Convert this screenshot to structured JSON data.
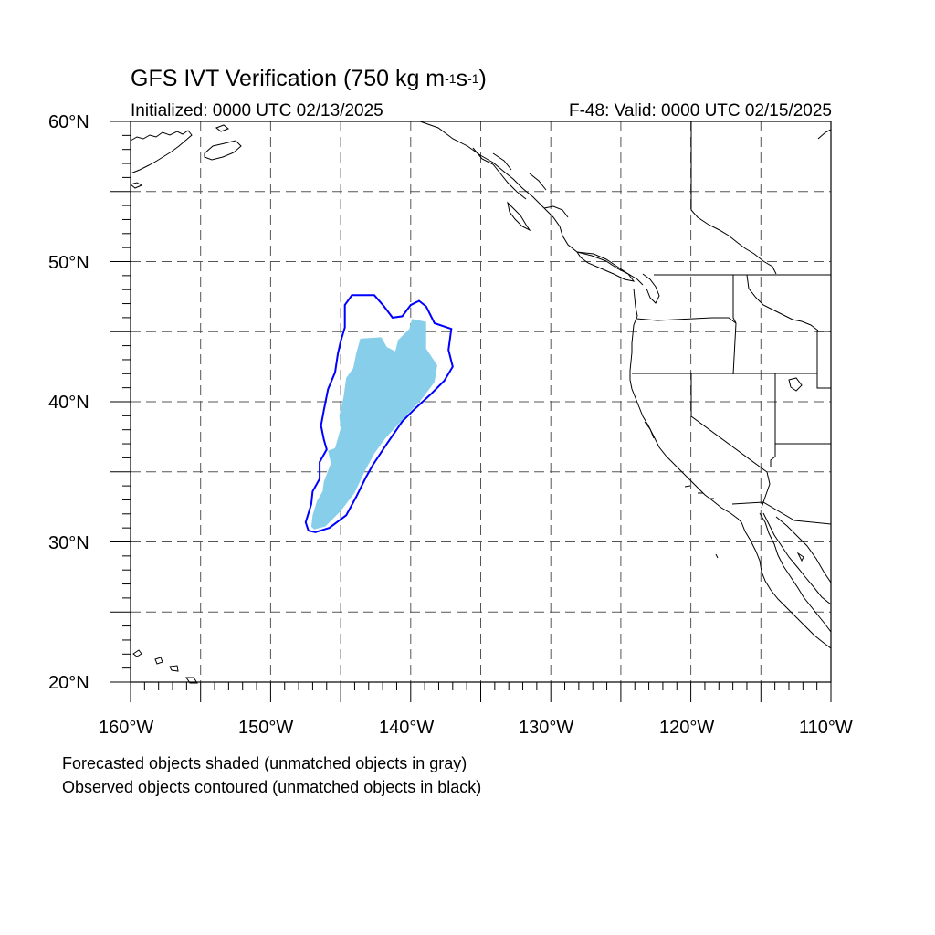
{
  "title": {
    "main": "GFS IVT Verification (750 kg m",
    "sup1": "-1",
    "mid": "s",
    "sup2": "-1",
    "end": ")"
  },
  "initialized_label": "Initialized: 0000 UTC 02/13/2025",
  "valid_label": "F-48: Valid: 0000 UTC 02/15/2025",
  "lat_ticks": [
    {
      "value": 60,
      "label": "60°N"
    },
    {
      "value": 50,
      "label": "50°N"
    },
    {
      "value": 40,
      "label": "40°N"
    },
    {
      "value": 30,
      "label": "30°N"
    },
    {
      "value": 20,
      "label": "20°N"
    }
  ],
  "lon_ticks": [
    {
      "value": -160,
      "label": "160°W"
    },
    {
      "value": -150,
      "label": "150°W"
    },
    {
      "value": -140,
      "label": "140°W"
    },
    {
      "value": -130,
      "label": "130°W"
    },
    {
      "value": -120,
      "label": "120°W"
    },
    {
      "value": -110,
      "label": "110°W"
    }
  ],
  "map_extent": {
    "lon_min": -160,
    "lon_max": -110,
    "lat_min": 20,
    "lat_max": 60
  },
  "notes": {
    "line1": "Forecasted objects shaded (unmatched objects in gray)",
    "line2": "Observed objects contoured (unmatched objects in black)"
  },
  "colors": {
    "forecast_fill": "#87ceeb",
    "observed_contour": "#0000ff",
    "coastline": "#000000",
    "grid": "#555555"
  },
  "chart_data": {
    "type": "map",
    "title": "GFS IVT Verification (750 kg m-1s-1)",
    "xlim": [
      -160,
      -110
    ],
    "ylim": [
      20,
      60
    ],
    "grid_interval_deg": 5,
    "grid": true,
    "forecast_object": {
      "matched": true,
      "polygon_lonlat": [
        [
          -146.9,
          30.9
        ],
        [
          -146.1,
          31.1
        ],
        [
          -145.0,
          32.2
        ],
        [
          -144.0,
          33.5
        ],
        [
          -143.3,
          35.0
        ],
        [
          -142.6,
          36.3
        ],
        [
          -141.8,
          37.4
        ],
        [
          -140.6,
          38.7
        ],
        [
          -139.2,
          40.2
        ],
        [
          -138.3,
          41.4
        ],
        [
          -138.1,
          42.6
        ],
        [
          -138.9,
          43.8
        ],
        [
          -138.9,
          45.7
        ],
        [
          -139.9,
          45.9
        ],
        [
          -140.1,
          45.2
        ],
        [
          -140.9,
          44.4
        ],
        [
          -141.1,
          43.6
        ],
        [
          -141.7,
          43.9
        ],
        [
          -142.1,
          44.6
        ],
        [
          -143.6,
          44.5
        ],
        [
          -143.9,
          43.4
        ],
        [
          -144.1,
          42.4
        ],
        [
          -144.6,
          41.7
        ],
        [
          -144.8,
          40.3
        ],
        [
          -145.1,
          39.0
        ],
        [
          -145.0,
          38.1
        ],
        [
          -145.4,
          36.7
        ],
        [
          -145.9,
          36.5
        ],
        [
          -145.7,
          35.6
        ],
        [
          -146.2,
          34.3
        ],
        [
          -146.3,
          33.6
        ],
        [
          -146.7,
          32.9
        ],
        [
          -147.0,
          31.9
        ],
        [
          -147.1,
          31.1
        ]
      ]
    },
    "observed_object": {
      "matched": true,
      "polygon_lonlat": [
        [
          -146.8,
          30.7
        ],
        [
          -145.8,
          31.0
        ],
        [
          -144.6,
          31.9
        ],
        [
          -143.9,
          33.2
        ],
        [
          -143.2,
          34.6
        ],
        [
          -142.7,
          35.5
        ],
        [
          -141.7,
          37.0
        ],
        [
          -140.6,
          38.6
        ],
        [
          -139.7,
          39.5
        ],
        [
          -138.6,
          40.5
        ],
        [
          -137.6,
          41.5
        ],
        [
          -137.0,
          42.5
        ],
        [
          -137.3,
          43.7
        ],
        [
          -137.1,
          45.2
        ],
        [
          -138.3,
          45.6
        ],
        [
          -138.9,
          46.8
        ],
        [
          -139.4,
          47.2
        ],
        [
          -140.0,
          46.9
        ],
        [
          -140.6,
          46.1
        ],
        [
          -141.3,
          46.0
        ],
        [
          -141.9,
          46.8
        ],
        [
          -142.6,
          47.6
        ],
        [
          -144.2,
          47.6
        ],
        [
          -144.7,
          46.9
        ],
        [
          -144.7,
          45.3
        ],
        [
          -145.0,
          44.3
        ],
        [
          -145.2,
          43.4
        ],
        [
          -145.4,
          42.1
        ],
        [
          -145.9,
          40.9
        ],
        [
          -146.2,
          39.4
        ],
        [
          -146.4,
          38.3
        ],
        [
          -146.2,
          37.3
        ],
        [
          -146.0,
          36.6
        ],
        [
          -146.5,
          35.7
        ],
        [
          -146.5,
          34.5
        ],
        [
          -147.0,
          33.6
        ],
        [
          -147.1,
          32.7
        ],
        [
          -147.5,
          31.4
        ],
        [
          -147.3,
          30.8
        ]
      ]
    }
  }
}
